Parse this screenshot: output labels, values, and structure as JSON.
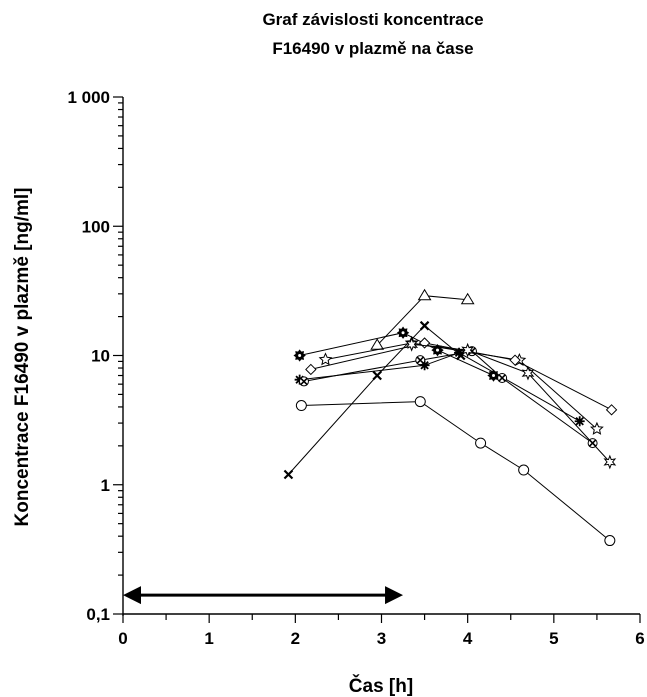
{
  "chart_data": {
    "type": "line",
    "title_lines": [
      "Graf závislosti koncentrace",
      "F16490 v plazmě na čase"
    ],
    "xlabel": "Čas [h]",
    "ylabel": "Koncentrace F16490 v plazmě [ng/ml]",
    "xlim": [
      0,
      6
    ],
    "ylim": [
      0.1,
      1000
    ],
    "y_scale": "log",
    "x_ticks": [
      {
        "value": 0,
        "label": "0"
      },
      {
        "value": 1,
        "label": "1"
      },
      {
        "value": 2,
        "label": "2"
      },
      {
        "value": 3,
        "label": "3"
      },
      {
        "value": 4,
        "label": "4"
      },
      {
        "value": 5,
        "label": "5"
      },
      {
        "value": 6,
        "label": "6"
      }
    ],
    "y_ticks": [
      {
        "value": 0.1,
        "label": "0,1"
      },
      {
        "value": 1,
        "label": "1"
      },
      {
        "value": 10,
        "label": "10"
      },
      {
        "value": 100,
        "label": "100"
      },
      {
        "value": 1000,
        "label": "1 000"
      }
    ],
    "grid": false,
    "legend": "none",
    "annotations": [
      {
        "type": "double-arrow",
        "x_from": 0,
        "x_to": 3.25,
        "y": 0.14
      }
    ],
    "series": [
      {
        "marker": "circle",
        "x": [
          2.07,
          3.45,
          4.15,
          4.65,
          5.65
        ],
        "y": [
          4.1,
          4.4,
          2.1,
          1.3,
          0.37
        ]
      },
      {
        "marker": "triangle",
        "x": [
          2.95,
          3.5,
          4.0
        ],
        "y": [
          12,
          29,
          27
        ]
      },
      {
        "marker": "x",
        "x": [
          1.92,
          2.95,
          3.5,
          3.92
        ],
        "y": [
          1.2,
          7,
          17,
          10
        ]
      },
      {
        "marker": "cog",
        "x": [
          2.05,
          3.25,
          3.65,
          4.3
        ],
        "y": [
          10,
          15,
          11,
          7
        ]
      },
      {
        "marker": "star",
        "x": [
          2.35,
          3.35,
          4.6,
          5.5
        ],
        "y": [
          9.3,
          12.5,
          9.2,
          2.7
        ]
      },
      {
        "marker": "diamond",
        "x": [
          2.18,
          3.5,
          4.55,
          5.67
        ],
        "y": [
          7.8,
          12.5,
          9.2,
          3.8
        ]
      },
      {
        "marker": "asterisk",
        "x": [
          2.05,
          3.5,
          3.9,
          5.3
        ],
        "y": [
          6.5,
          8.4,
          10.5,
          3.1
        ]
      },
      {
        "marker": "cross-circle",
        "x": [
          2.1,
          3.45,
          4.05,
          4.4,
          5.45
        ],
        "y": [
          6.3,
          9.2,
          10.8,
          6.7,
          2.1
        ]
      },
      {
        "marker": "star6",
        "x": [
          3.35,
          4.0,
          4.7,
          5.65
        ],
        "y": [
          12.2,
          11,
          7.3,
          1.5
        ]
      }
    ]
  }
}
